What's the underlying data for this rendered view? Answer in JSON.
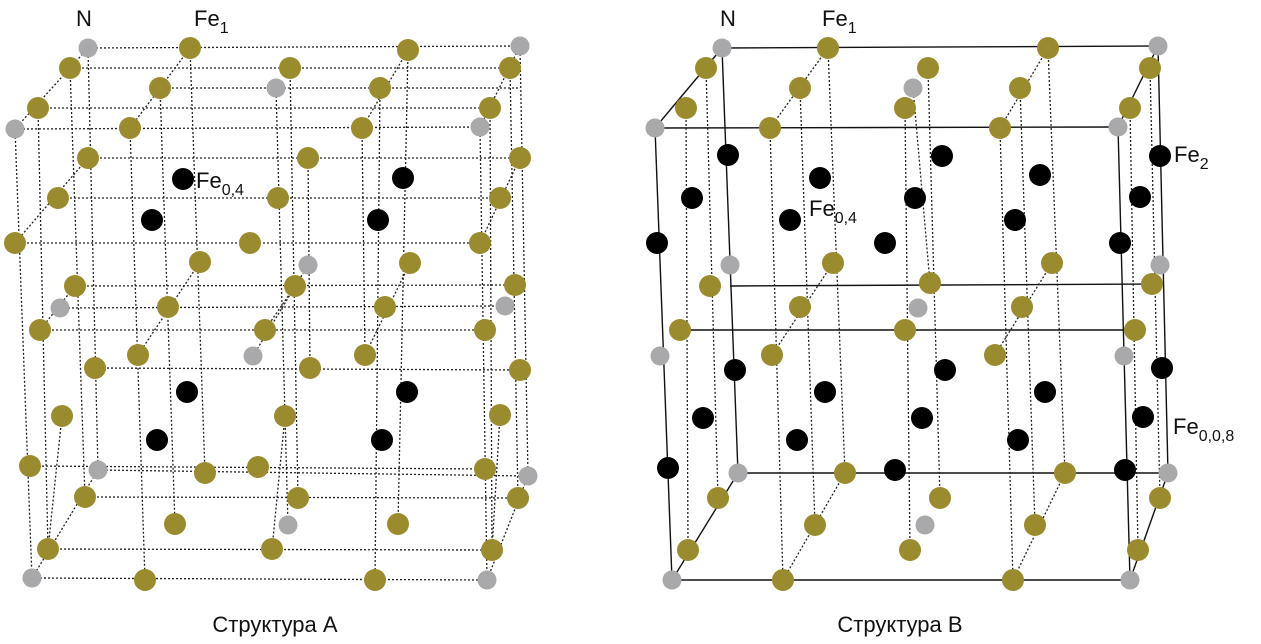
{
  "structures": [
    {
      "caption": "Структура А",
      "labels": [
        {
          "text": "N"
        },
        {
          "text": "Fe",
          "sub": "1"
        },
        {
          "text": "Fe",
          "sub": "0,4"
        }
      ]
    },
    {
      "caption": "Структура В",
      "labels": [
        {
          "text": "N"
        },
        {
          "text": "Fe",
          "sub": "1"
        },
        {
          "text": "Fe",
          "sub": "2"
        },
        {
          "text": "Fe",
          "sub": "0,4"
        },
        {
          "text": "Fe",
          "sub": "0,0,8"
        }
      ]
    }
  ]
}
